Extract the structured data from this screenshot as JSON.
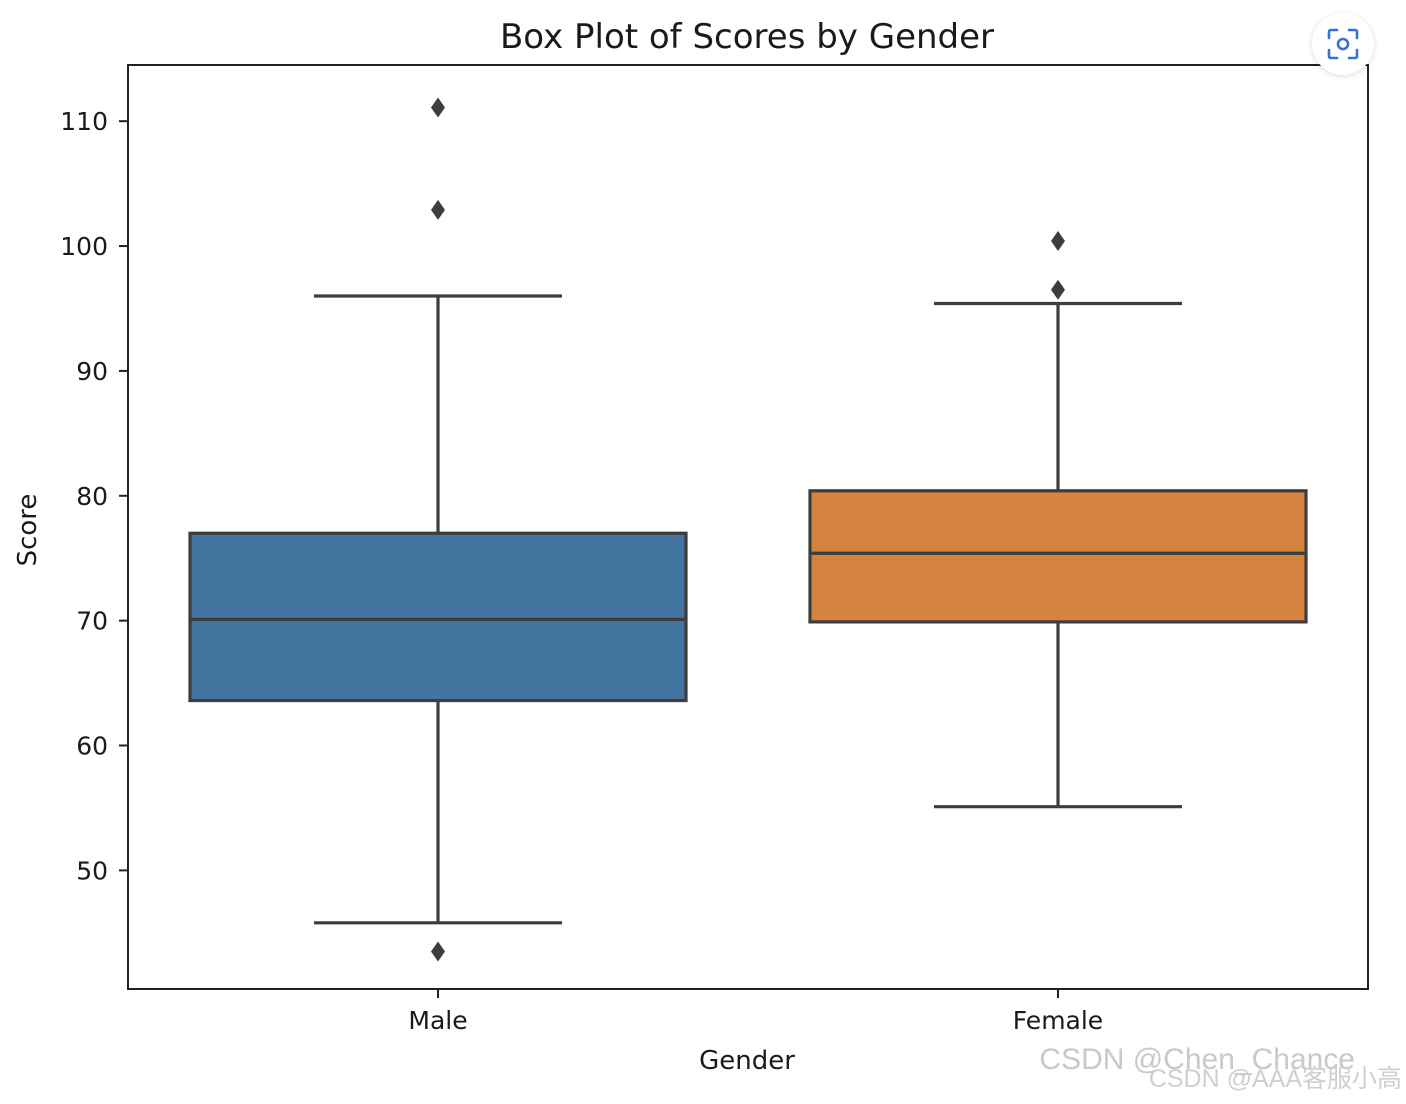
{
  "chart_data": {
    "type": "box",
    "title": "Box Plot of Scores by Gender",
    "xlabel": "Gender",
    "ylabel": "Score",
    "categories": [
      "Male",
      "Female"
    ],
    "ylim": [
      40.5,
      114.5
    ],
    "yticks": [
      50,
      60,
      70,
      80,
      90,
      100,
      110
    ],
    "grid": false,
    "boxes": [
      {
        "category": "Male",
        "color": "#4374a0",
        "whisker_low": 45.8,
        "q1": 63.6,
        "median": 70.1,
        "q3": 77.0,
        "whisker_high": 96.0,
        "outliers": [
          111.1,
          102.9,
          43.5
        ]
      },
      {
        "category": "Female",
        "color": "#d58440",
        "whisker_low": 55.1,
        "q1": 69.9,
        "median": 75.4,
        "q3": 80.4,
        "whisker_high": 95.4,
        "outliers": [
          100.4,
          96.5
        ]
      }
    ]
  },
  "watermark": {
    "line1": "CSDN @Chen_Chance",
    "line2": "CSDN @AAA客服小高"
  },
  "ui": {
    "lens_icon": "image-search-icon"
  }
}
